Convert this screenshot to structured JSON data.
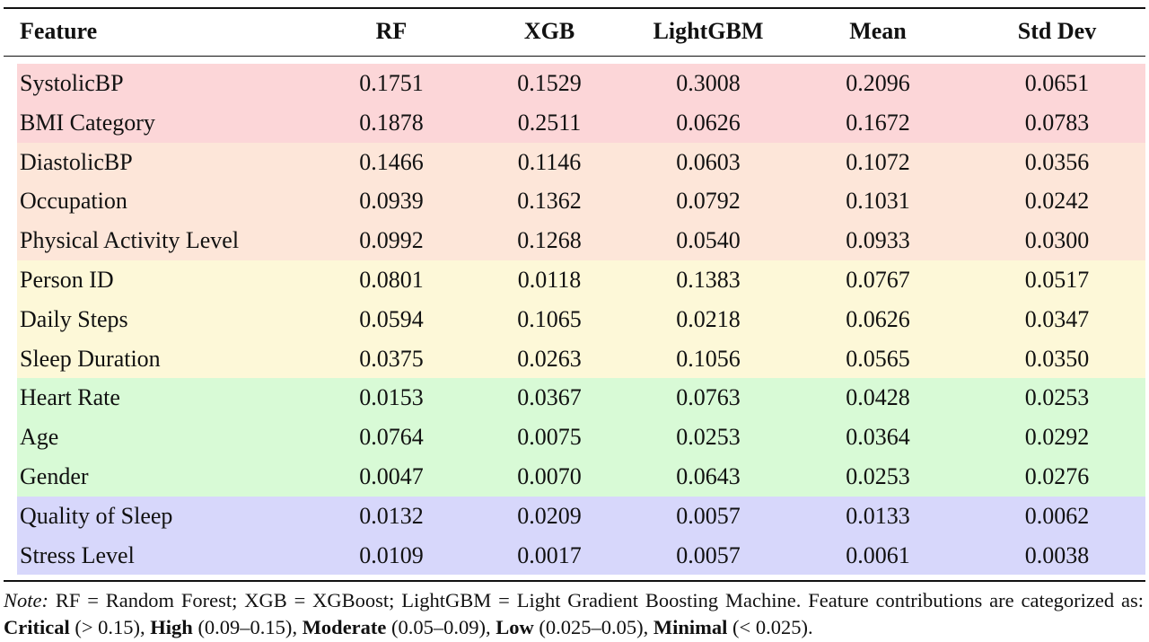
{
  "columns": {
    "feature": "Feature",
    "rf": "RF",
    "xgb": "XGB",
    "lightgbm": "LightGBM",
    "mean": "Mean",
    "std": "Std Dev"
  },
  "colors": {
    "critical": "#fcd6d8",
    "high": "#fde6d9",
    "moderate": "#fdf8d8",
    "low": "#d8fad6",
    "minimal": "#d7d7fb"
  },
  "rows": [
    {
      "feature": "SystolicBP",
      "rf": "0.1751",
      "xgb": "0.1529",
      "lightgbm": "0.3008",
      "mean": "0.2096",
      "std": "0.0651",
      "category": "critical"
    },
    {
      "feature": "BMI Category",
      "rf": "0.1878",
      "xgb": "0.2511",
      "lightgbm": "0.0626",
      "mean": "0.1672",
      "std": "0.0783",
      "category": "critical"
    },
    {
      "feature": "DiastolicBP",
      "rf": "0.1466",
      "xgb": "0.1146",
      "lightgbm": "0.0603",
      "mean": "0.1072",
      "std": "0.0356",
      "category": "high"
    },
    {
      "feature": "Occupation",
      "rf": "0.0939",
      "xgb": "0.1362",
      "lightgbm": "0.0792",
      "mean": "0.1031",
      "std": "0.0242",
      "category": "high"
    },
    {
      "feature": "Physical Activity Level",
      "rf": "0.0992",
      "xgb": "0.1268",
      "lightgbm": "0.0540",
      "mean": "0.0933",
      "std": "0.0300",
      "category": "high"
    },
    {
      "feature": "Person ID",
      "rf": "0.0801",
      "xgb": "0.0118",
      "lightgbm": "0.1383",
      "mean": "0.0767",
      "std": "0.0517",
      "category": "moderate"
    },
    {
      "feature": "Daily Steps",
      "rf": "0.0594",
      "xgb": "0.1065",
      "lightgbm": "0.0218",
      "mean": "0.0626",
      "std": "0.0347",
      "category": "moderate"
    },
    {
      "feature": "Sleep Duration",
      "rf": "0.0375",
      "xgb": "0.0263",
      "lightgbm": "0.1056",
      "mean": "0.0565",
      "std": "0.0350",
      "category": "moderate"
    },
    {
      "feature": "Heart Rate",
      "rf": "0.0153",
      "xgb": "0.0367",
      "lightgbm": "0.0763",
      "mean": "0.0428",
      "std": "0.0253",
      "category": "low"
    },
    {
      "feature": "Age",
      "rf": "0.0764",
      "xgb": "0.0075",
      "lightgbm": "0.0253",
      "mean": "0.0364",
      "std": "0.0292",
      "category": "low"
    },
    {
      "feature": "Gender",
      "rf": "0.0047",
      "xgb": "0.0070",
      "lightgbm": "0.0643",
      "mean": "0.0253",
      "std": "0.0276",
      "category": "low"
    },
    {
      "feature": "Quality of Sleep",
      "rf": "0.0132",
      "xgb": "0.0209",
      "lightgbm": "0.0057",
      "mean": "0.0133",
      "std": "0.0062",
      "category": "minimal"
    },
    {
      "feature": "Stress Level",
      "rf": "0.0109",
      "xgb": "0.0017",
      "lightgbm": "0.0057",
      "mean": "0.0061",
      "std": "0.0038",
      "category": "minimal"
    }
  ],
  "note": {
    "lead": "Note:",
    "abbreviations": "RF = Random Forest; XGB = XGBoost; LightGBM = Light Gradient Boosting Machine.",
    "intro": "Feature contributions are categorized as:",
    "categories": [
      {
        "label": "Critical",
        "range": "(> 0.15)",
        "sep": ","
      },
      {
        "label": "High",
        "range": "(0.09–0.15)",
        "sep": ","
      },
      {
        "label": "Moderate",
        "range": "(0.05–0.09)",
        "sep": ","
      },
      {
        "label": "Low",
        "range": "(0.025–0.05)",
        "sep": ","
      },
      {
        "label": "Minimal",
        "range": "(< 0.025)",
        "sep": "."
      }
    ]
  }
}
